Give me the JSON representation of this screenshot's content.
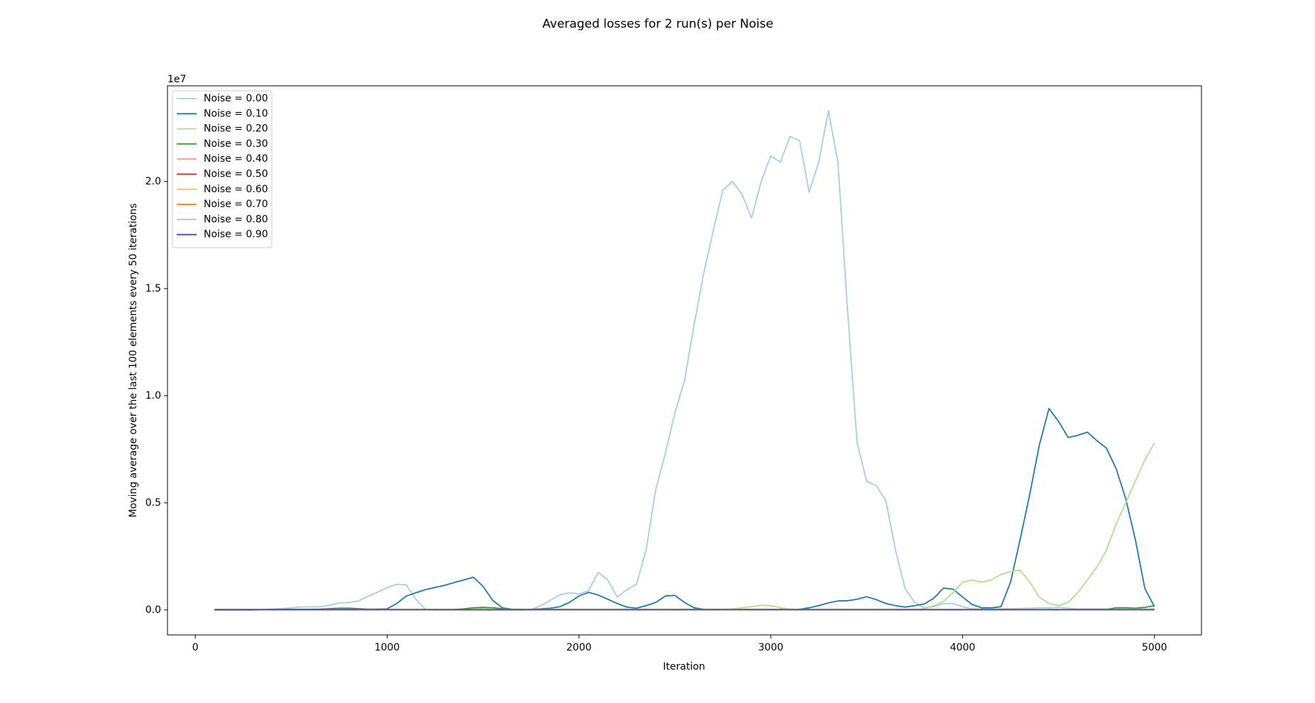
{
  "chart_data": {
    "type": "line",
    "title": "Averaged losses for 2 run(s) per Noise",
    "x_label": "Iteration",
    "y_label": "Moving average over the last 100 elements every 50 iterations",
    "y_offset_label": "1e7",
    "legend_position": "upper left",
    "grid": false,
    "xlim": [
      -145,
      5245
    ],
    "ylim": [
      -0.1165,
      2.4465
    ],
    "xticks": [
      0,
      1000,
      2000,
      3000,
      4000,
      5000
    ],
    "yticks": [
      {
        "value": 0,
        "label": "0.0"
      },
      0.5,
      {
        "value": 1,
        "label": "1.0"
      },
      1.5,
      {
        "value": 2,
        "label": "2.0"
      }
    ],
    "x": [
      100,
      150,
      200,
      250,
      300,
      350,
      400,
      450,
      500,
      550,
      600,
      650,
      700,
      750,
      800,
      850,
      900,
      950,
      1000,
      1050,
      1100,
      1150,
      1200,
      1250,
      1300,
      1350,
      1400,
      1450,
      1500,
      1550,
      1600,
      1650,
      1700,
      1750,
      1800,
      1850,
      1900,
      1950,
      2000,
      2050,
      2100,
      2150,
      2200,
      2250,
      2300,
      2350,
      2400,
      2450,
      2500,
      2550,
      2600,
      2650,
      2700,
      2750,
      2800,
      2850,
      2900,
      2950,
      3000,
      3050,
      3100,
      3150,
      3200,
      3250,
      3300,
      3350,
      3400,
      3450,
      3500,
      3550,
      3600,
      3650,
      3700,
      3750,
      3800,
      3850,
      3900,
      3950,
      4000,
      4050,
      4100,
      4150,
      4200,
      4250,
      4300,
      4350,
      4400,
      4450,
      4500,
      4550,
      4600,
      4650,
      4700,
      4750,
      4800,
      4850,
      4900,
      4950,
      5000
    ],
    "series": [
      {
        "name": "Noise = 0.00",
        "color": "#a6cee3",
        "values": [
          0,
          0,
          0,
          0,
          0,
          0.001,
          0.003,
          0.006,
          0.01,
          0.014,
          0.014,
          0.015,
          0.022,
          0.033,
          0.035,
          0.042,
          0.063,
          0.083,
          0.104,
          0.12,
          0.117,
          0.05,
          0.002,
          0,
          0,
          0,
          0,
          0,
          0,
          0,
          0,
          0,
          0,
          0.002,
          0.02,
          0.045,
          0.07,
          0.08,
          0.075,
          0.09,
          0.175,
          0.14,
          0.06,
          0.095,
          0.12,
          0.28,
          0.56,
          0.73,
          0.92,
          1.07,
          1.33,
          1.57,
          1.77,
          1.96,
          2.0,
          1.94,
          1.83,
          2.0,
          2.12,
          2.09,
          2.21,
          2.19,
          1.95,
          2.09,
          2.33,
          2.09,
          1.4,
          0.78,
          0.6,
          0.58,
          0.51,
          0.28,
          0.1,
          0.035,
          0.01,
          0.015,
          0.03,
          0.03,
          0.015,
          0.005,
          0.005,
          0.005,
          0.005,
          0.006,
          0.007,
          0.008,
          0.01,
          0.01,
          0.012,
          0.008,
          0.005,
          0.005,
          0.005,
          0.005,
          0.005,
          0.005,
          0.005,
          0.005,
          0.005
        ]
      },
      {
        "name": "Noise = 0.10",
        "color": "#1f78b4",
        "values": [
          0.002,
          0.002,
          0.002,
          0.002,
          0.002,
          0.002,
          0.003,
          0.003,
          0.003,
          0.003,
          0.003,
          0.004,
          0.006,
          0.008,
          0.008,
          0.006,
          0.004,
          0.004,
          0.005,
          0.03,
          0.065,
          0.08,
          0.095,
          0.105,
          0.115,
          0.128,
          0.14,
          0.153,
          0.11,
          0.045,
          0.01,
          0.003,
          0.003,
          0.003,
          0.005,
          0.008,
          0.015,
          0.035,
          0.065,
          0.082,
          0.07,
          0.05,
          0.03,
          0.013,
          0.008,
          0.02,
          0.035,
          0.065,
          0.068,
          0.035,
          0.01,
          0.003,
          0.002,
          0.002,
          0.002,
          0.002,
          0.002,
          0.002,
          0.002,
          0.002,
          0.002,
          0.003,
          0.01,
          0.02,
          0.033,
          0.042,
          0.043,
          0.05,
          0.062,
          0.048,
          0.03,
          0.02,
          0.013,
          0.02,
          0.028,
          0.055,
          0.102,
          0.097,
          0.06,
          0.025,
          0.01,
          0.01,
          0.015,
          0.13,
          0.33,
          0.54,
          0.77,
          0.94,
          0.88,
          0.805,
          0.815,
          0.83,
          0.79,
          0.755,
          0.66,
          0.52,
          0.33,
          0.1,
          0.015
        ]
      },
      {
        "name": "Noise = 0.20",
        "color": "#b2df8a",
        "values": [
          0,
          0,
          0,
          0,
          0,
          0.001,
          0.001,
          0.001,
          0.001,
          0.001,
          0.001,
          0.001,
          0.002,
          0.002,
          0.002,
          0.002,
          0.002,
          0.002,
          0.002,
          0.002,
          0.002,
          0.002,
          0.002,
          0.002,
          0.002,
          0.002,
          0.003,
          0.005,
          0.008,
          0.008,
          0.004,
          0.002,
          0.002,
          0.002,
          0.002,
          0.002,
          0.002,
          0.002,
          0.002,
          0.002,
          0.002,
          0.002,
          0.002,
          0.002,
          0.002,
          0.002,
          0.002,
          0.002,
          0.003,
          0.003,
          0.002,
          0.002,
          0.002,
          0.003,
          0.005,
          0.01,
          0.015,
          0.022,
          0.02,
          0.01,
          0.004,
          0.002,
          0.002,
          0.002,
          0.002,
          0.002,
          0.002,
          0.002,
          0.002,
          0.002,
          0.002,
          0.002,
          0.002,
          0.002,
          0.005,
          0.02,
          0.04,
          0.08,
          0.13,
          0.14,
          0.13,
          0.14,
          0.165,
          0.18,
          0.185,
          0.13,
          0.06,
          0.03,
          0.02,
          0.035,
          0.08,
          0.14,
          0.2,
          0.28,
          0.4,
          0.5,
          0.6,
          0.7,
          0.78
        ]
      },
      {
        "name": "Noise = 0.30",
        "color": "#33a02c",
        "values": [
          0,
          0,
          0,
          0,
          0,
          0.001,
          0.001,
          0.001,
          0.001,
          0.001,
          0.001,
          0.001,
          0.002,
          0.002,
          0.002,
          0.002,
          0.002,
          0.002,
          0.002,
          0.002,
          0.002,
          0.002,
          0.002,
          0.002,
          0.002,
          0.002,
          0.005,
          0.01,
          0.012,
          0.01,
          0.006,
          0.003,
          0.002,
          0.002,
          0.002,
          0.002,
          0.002,
          0.002,
          0.002,
          0.002,
          0.002,
          0.002,
          0.002,
          0.002,
          0.002,
          0.002,
          0.002,
          0.002,
          0.002,
          0.002,
          0.002,
          0.002,
          0.002,
          0.002,
          0.002,
          0.002,
          0.002,
          0.002,
          0.002,
          0.002,
          0.002,
          0.002,
          0.002,
          0.002,
          0.002,
          0.002,
          0.002,
          0.002,
          0.002,
          0.002,
          0.002,
          0.002,
          0.002,
          0.002,
          0.002,
          0.002,
          0.002,
          0.002,
          0.002,
          0.002,
          0.002,
          0.002,
          0.002,
          0.002,
          0.002,
          0.002,
          0.002,
          0.002,
          0.002,
          0.002,
          0.002,
          0.002,
          0.002,
          0.002,
          0.01,
          0.01,
          0.008,
          0.012,
          0.02
        ]
      },
      {
        "name": "Noise = 0.40",
        "color": "#fb9a99",
        "values": [
          0.001,
          0.001,
          0.001,
          0.001,
          0.001,
          0.001,
          0.001,
          0.001,
          0.001,
          0.001,
          0.001,
          0.001,
          0.001,
          0.001,
          0.001,
          0.001,
          0.001,
          0.001,
          0.001,
          0.001,
          0.001,
          0.001,
          0.001,
          0.001,
          0.001,
          0.001,
          0.001,
          0.001,
          0.001,
          0.001,
          0.001,
          0.001,
          0.001,
          0.001,
          0.001,
          0.001,
          0.001,
          0.001,
          0.001,
          0.001,
          0.001,
          0.001,
          0.001,
          0.001,
          0.001,
          0.001,
          0.001,
          0.001,
          0.001,
          0.001,
          0.001,
          0.001,
          0.001,
          0.001,
          0.001,
          0.001,
          0.001,
          0.001,
          0.001,
          0.001,
          0.001,
          0.001,
          0.001,
          0.001,
          0.001,
          0.001,
          0.001,
          0.001,
          0.001,
          0.001,
          0.001,
          0.001,
          0.001,
          0.001,
          0.001,
          0.001,
          0.001,
          0.001,
          0.001,
          0.001,
          0.001,
          0.001,
          0.001,
          0.001,
          0.001,
          0.001,
          0.001,
          0.001,
          0.001,
          0.001,
          0.001,
          0.001,
          0.001,
          0.001,
          0.001,
          0.001,
          0.001,
          0.001,
          0.001
        ]
      },
      {
        "name": "Noise = 0.50",
        "color": "#e31a1c",
        "values": [
          0.001,
          0.001,
          0.001,
          0.001,
          0.001,
          0.001,
          0.001,
          0.001,
          0.001,
          0.001,
          0.001,
          0.001,
          0.001,
          0.001,
          0.001,
          0.001,
          0.001,
          0.001,
          0.001,
          0.001,
          0.001,
          0.001,
          0.001,
          0.001,
          0.001,
          0.001,
          0.001,
          0.001,
          0.001,
          0.001,
          0.001,
          0.001,
          0.001,
          0.001,
          0.001,
          0.001,
          0.001,
          0.001,
          0.001,
          0.001,
          0.001,
          0.001,
          0.001,
          0.001,
          0.001,
          0.001,
          0.001,
          0.001,
          0.001,
          0.001,
          0.001,
          0.001,
          0.001,
          0.001,
          0.001,
          0.001,
          0.001,
          0.001,
          0.001,
          0.001,
          0.001,
          0.001,
          0.001,
          0.001,
          0.001,
          0.001,
          0.001,
          0.001,
          0.001,
          0.001,
          0.001,
          0.001,
          0.001,
          0.001,
          0.001,
          0.001,
          0.001,
          0.001,
          0.001,
          0.001,
          0.001,
          0.001,
          0.001,
          0.001,
          0.001,
          0.001,
          0.001,
          0.001,
          0.001,
          0.001,
          0.001,
          0.001,
          0.001,
          0.001,
          0.001,
          0.001,
          0.001,
          0.001,
          0.001
        ]
      },
      {
        "name": "Noise = 0.60",
        "color": "#fdbf6f",
        "values": [
          0.001,
          0.001,
          0.001,
          0.001,
          0.001,
          0.001,
          0.001,
          0.001,
          0.001,
          0.001,
          0.001,
          0.001,
          0.001,
          0.001,
          0.001,
          0.001,
          0.001,
          0.001,
          0.001,
          0.001,
          0.001,
          0.001,
          0.001,
          0.001,
          0.001,
          0.001,
          0.001,
          0.001,
          0.001,
          0.001,
          0.001,
          0.001,
          0.001,
          0.001,
          0.001,
          0.001,
          0.001,
          0.001,
          0.001,
          0.001,
          0.001,
          0.001,
          0.001,
          0.001,
          0.001,
          0.001,
          0.001,
          0.001,
          0.001,
          0.001,
          0.001,
          0.001,
          0.001,
          0.001,
          0.001,
          0.001,
          0.001,
          0.001,
          0.001,
          0.001,
          0.001,
          0.001,
          0.001,
          0.001,
          0.001,
          0.001,
          0.001,
          0.001,
          0.001,
          0.001,
          0.001,
          0.001,
          0.001,
          0.001,
          0.001,
          0.001,
          0.001,
          0.001,
          0.001,
          0.001,
          0.001,
          0.001,
          0.001,
          0.001,
          0.001,
          0.001,
          0.001,
          0.001,
          0.001,
          0.001,
          0.001,
          0.001,
          0.001,
          0.001,
          0.001,
          0.001,
          0.001,
          0.001,
          0.001
        ]
      },
      {
        "name": "Noise = 0.70",
        "color": "#ff7f00",
        "values": [
          0.001,
          0.001,
          0.001,
          0.001,
          0.001,
          0.001,
          0.001,
          0.001,
          0.001,
          0.001,
          0.001,
          0.001,
          0.001,
          0.001,
          0.001,
          0.001,
          0.001,
          0.001,
          0.001,
          0.001,
          0.001,
          0.001,
          0.001,
          0.001,
          0.001,
          0.001,
          0.001,
          0.001,
          0.001,
          0.001,
          0.001,
          0.001,
          0.001,
          0.001,
          0.001,
          0.001,
          0.001,
          0.001,
          0.001,
          0.001,
          0.001,
          0.001,
          0.001,
          0.001,
          0.001,
          0.001,
          0.001,
          0.001,
          0.001,
          0.001,
          0.001,
          0.001,
          0.001,
          0.001,
          0.001,
          0.001,
          0.001,
          0.001,
          0.001,
          0.001,
          0.001,
          0.001,
          0.001,
          0.001,
          0.001,
          0.001,
          0.001,
          0.001,
          0.001,
          0.001,
          0.001,
          0.001,
          0.001,
          0.001,
          0.001,
          0.001,
          0.001,
          0.001,
          0.001,
          0.001,
          0.001,
          0.001,
          0.001,
          0.001,
          0.001,
          0.001,
          0.001,
          0.001,
          0.001,
          0.001,
          0.001,
          0.001,
          0.001,
          0.001,
          0.001,
          0.001,
          0.001,
          0.001,
          0.001
        ]
      },
      {
        "name": "Noise = 0.80",
        "color": "#cab2d6",
        "values": [
          0.001,
          0.001,
          0.001,
          0.001,
          0.001,
          0.001,
          0.001,
          0.001,
          0.001,
          0.001,
          0.001,
          0.001,
          0.001,
          0.001,
          0.001,
          0.001,
          0.001,
          0.001,
          0.001,
          0.001,
          0.001,
          0.001,
          0.001,
          0.001,
          0.001,
          0.001,
          0.001,
          0.001,
          0.001,
          0.001,
          0.001,
          0.001,
          0.001,
          0.001,
          0.001,
          0.001,
          0.001,
          0.001,
          0.001,
          0.001,
          0.001,
          0.001,
          0.001,
          0.001,
          0.001,
          0.001,
          0.001,
          0.001,
          0.001,
          0.001,
          0.001,
          0.001,
          0.001,
          0.001,
          0.001,
          0.001,
          0.001,
          0.001,
          0.001,
          0.001,
          0.001,
          0.001,
          0.001,
          0.001,
          0.001,
          0.001,
          0.001,
          0.001,
          0.001,
          0.001,
          0.001,
          0.001,
          0.001,
          0.001,
          0.001,
          0.001,
          0.001,
          0.001,
          0.001,
          0.001,
          0.001,
          0.001,
          0.001,
          0.001,
          0.001,
          0.001,
          0.001,
          0.001,
          0.001,
          0.001,
          0.001,
          0.001,
          0.001,
          0.001,
          0.001,
          0.001,
          0.001,
          0.001,
          0.001
        ]
      },
      {
        "name": "Noise = 0.90",
        "color": "#6a3d9a",
        "values": [
          0.001,
          0.001,
          0.001,
          0.001,
          0.001,
          0.001,
          0.001,
          0.001,
          0.001,
          0.001,
          0.001,
          0.001,
          0.001,
          0.001,
          0.001,
          0.001,
          0.001,
          0.001,
          0.001,
          0.001,
          0.001,
          0.001,
          0.001,
          0.001,
          0.001,
          0.001,
          0.001,
          0.001,
          0.001,
          0.001,
          0.001,
          0.001,
          0.001,
          0.001,
          0.001,
          0.001,
          0.001,
          0.001,
          0.001,
          0.001,
          0.001,
          0.001,
          0.001,
          0.001,
          0.001,
          0.001,
          0.001,
          0.001,
          0.001,
          0.001,
          0.001,
          0.001,
          0.001,
          0.001,
          0.001,
          0.001,
          0.001,
          0.001,
          0.001,
          0.001,
          0.001,
          0.001,
          0.001,
          0.001,
          0.001,
          0.001,
          0.001,
          0.001,
          0.001,
          0.001,
          0.001,
          0.001,
          0.001,
          0.001,
          0.001,
          0.001,
          0.001,
          0.001,
          0.001,
          0.001,
          0.001,
          0.001,
          0.001,
          0.001,
          0.001,
          0.001,
          0.001,
          0.001,
          0.001,
          0.001,
          0.001,
          0.001,
          0.001,
          0.001,
          0.001,
          0.001,
          0.001,
          0.001,
          0.001
        ]
      }
    ]
  }
}
